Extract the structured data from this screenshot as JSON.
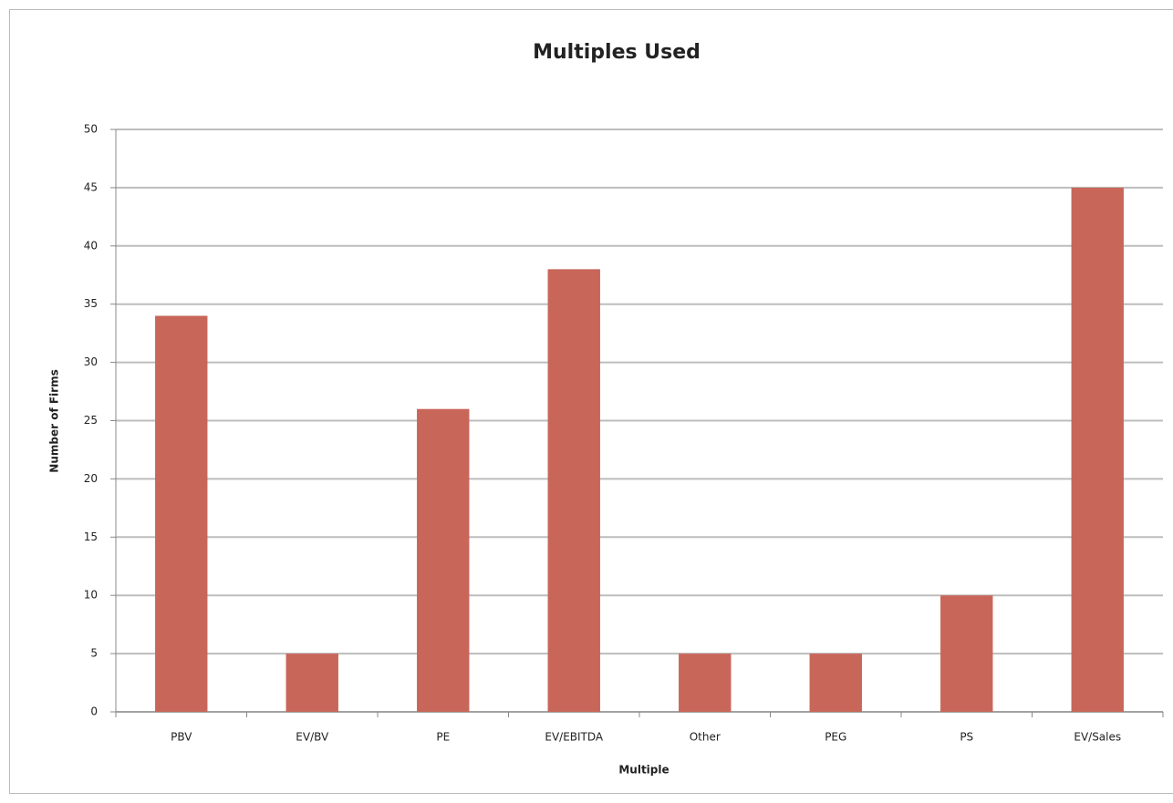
{
  "chart_data": {
    "type": "bar",
    "title": "Multiples Used",
    "x_label": "Multiple",
    "y_label": "Number of Firms",
    "categories": [
      "PBV",
      "EV/BV",
      "PE",
      "EV/EBITDA",
      "Other",
      "PEG",
      "PS",
      "EV/Sales"
    ],
    "values": [
      34,
      5,
      26,
      38,
      5,
      5,
      10,
      45
    ],
    "color": "#c8665a",
    "ylim": [
      0,
      50
    ],
    "yticks": [
      0,
      5,
      10,
      15,
      20,
      25,
      30,
      35,
      40,
      45,
      50
    ],
    "grid": true
  }
}
